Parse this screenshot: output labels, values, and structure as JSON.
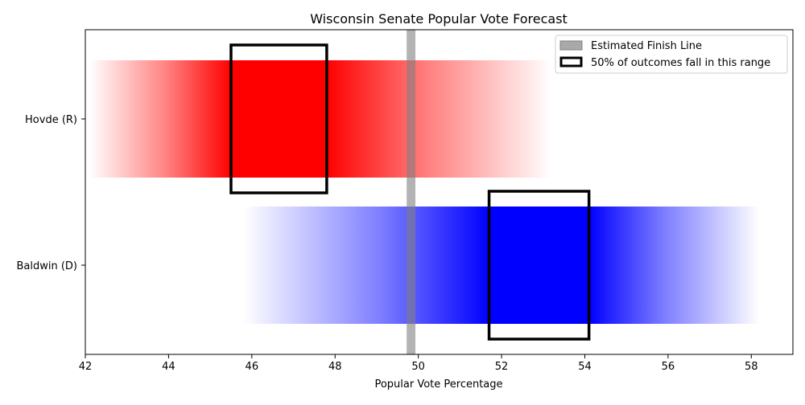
{
  "chart_data": {
    "type": "bar",
    "title": "Wisconsin Senate Popular Vote Forecast",
    "xlabel": "Popular Vote Percentage",
    "ylabel": "",
    "xlim": [
      42,
      59
    ],
    "xticks": [
      42,
      44,
      46,
      48,
      50,
      52,
      54,
      56,
      58
    ],
    "finish_line": [
      49.72,
      49.93
    ],
    "series": [
      {
        "name": "Hovde (R)",
        "color": "#ff0000",
        "outer_range": [
          42.1,
          53.2
        ],
        "interquartile_range": [
          45.5,
          47.8
        ]
      },
      {
        "name": "Baldwin (D)",
        "color": "#0000ff",
        "outer_range": [
          45.8,
          58.2
        ],
        "interquartile_range": [
          51.7,
          54.1
        ]
      }
    ],
    "legend": {
      "position": "top-right",
      "entries": [
        {
          "label": "Estimated Finish Line"
        },
        {
          "label": "50% of outcomes fall in this range"
        }
      ]
    }
  }
}
